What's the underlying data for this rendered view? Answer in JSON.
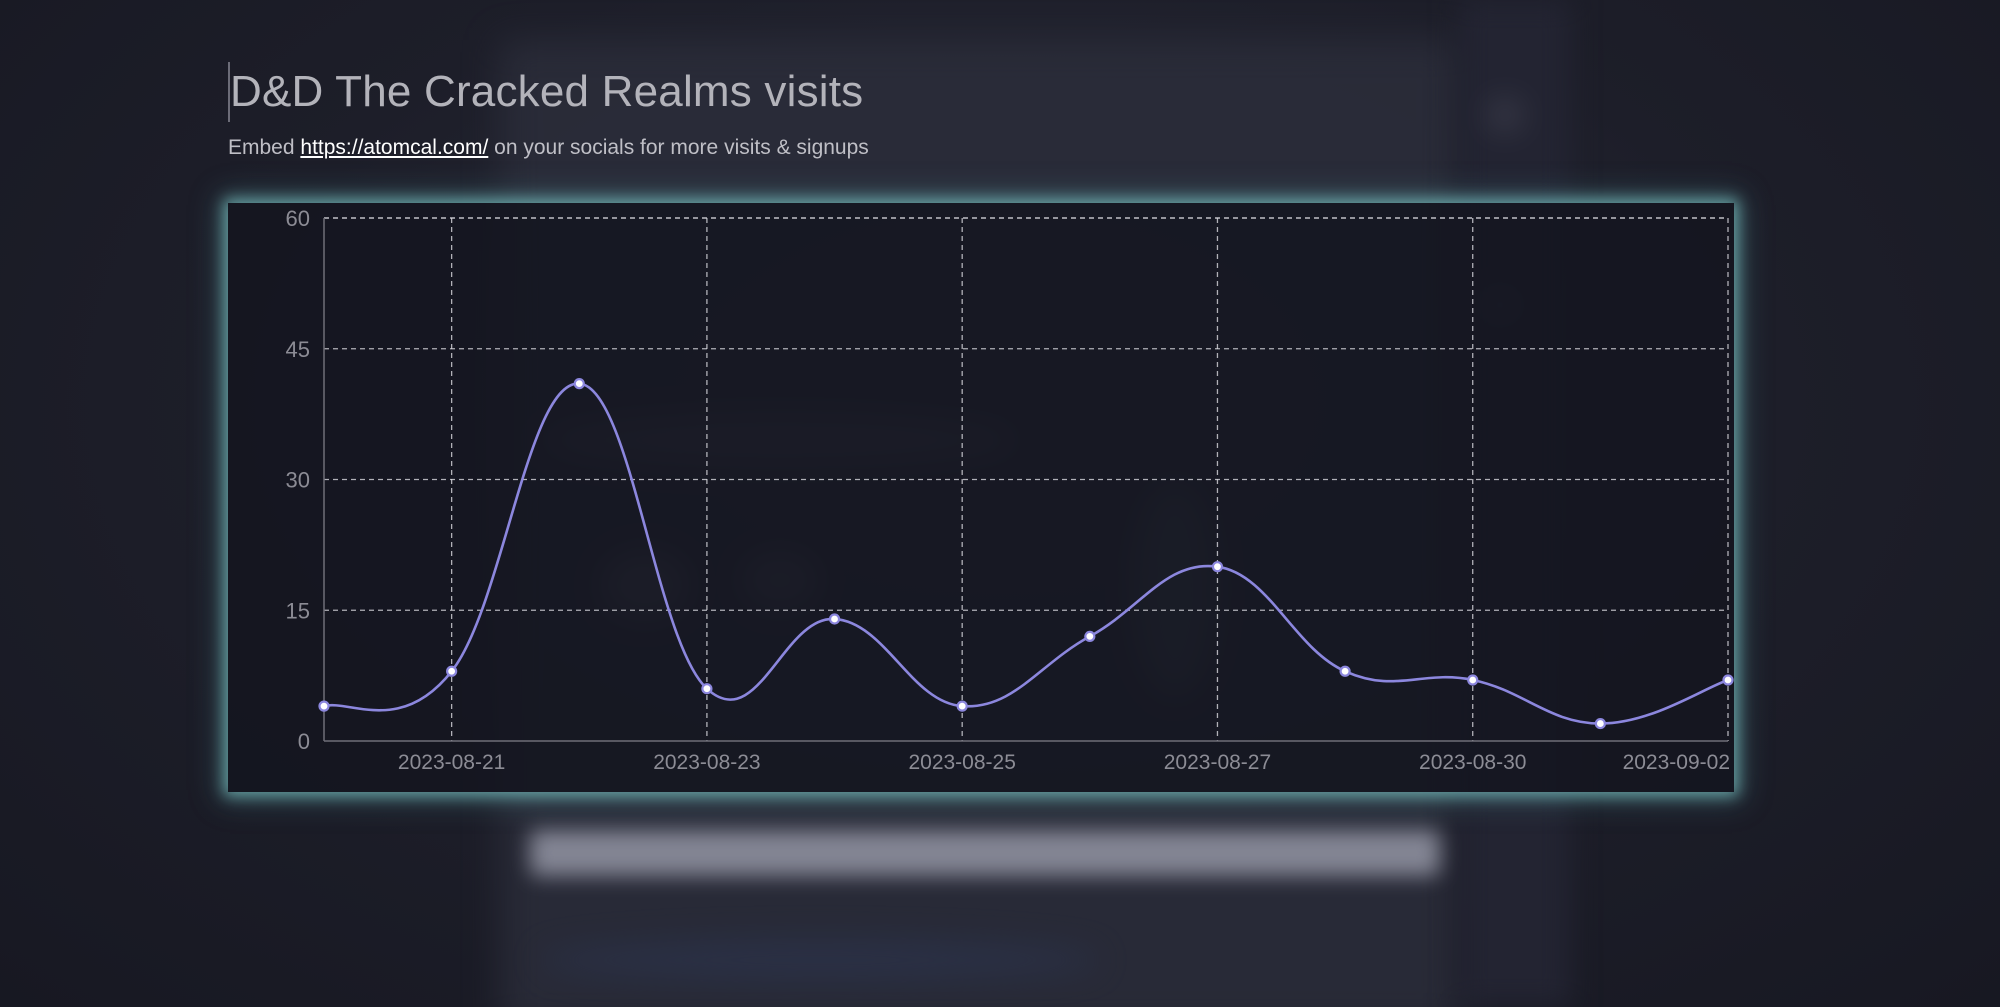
{
  "header": {
    "title": "D&D The Cracked Realms visits",
    "subtitle_prefix": "Embed",
    "subtitle_link": "https://atomcal.com/",
    "subtitle_suffix": "on your socials for more visits & signups"
  },
  "colors": {
    "line": "#8c87de",
    "point_fill": "#ffffff",
    "grid": "#d8d8de",
    "glow": "#78bebe"
  },
  "chart_data": {
    "type": "line",
    "title": "",
    "xlabel": "",
    "ylabel": "",
    "ylim": [
      0,
      60
    ],
    "y_ticks": [
      0,
      15,
      30,
      45,
      60
    ],
    "grid": true,
    "curve": "smooth",
    "x_tick_labels": [
      "2023-08-21",
      "2023-08-23",
      "2023-08-25",
      "2023-08-27",
      "2023-08-30",
      "2023-09-02"
    ],
    "series": [
      {
        "values": [
          4,
          8,
          41,
          6,
          14,
          4,
          12,
          20,
          8,
          7,
          2,
          7
        ]
      }
    ]
  }
}
